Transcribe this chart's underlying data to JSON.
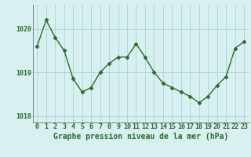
{
  "x": [
    0,
    1,
    2,
    3,
    4,
    5,
    6,
    7,
    8,
    9,
    10,
    11,
    12,
    13,
    14,
    15,
    16,
    17,
    18,
    19,
    20,
    21,
    22,
    23
  ],
  "y": [
    1019.6,
    1020.2,
    1019.8,
    1019.5,
    1018.85,
    1018.55,
    1018.65,
    1019.0,
    1019.2,
    1019.35,
    1019.35,
    1019.65,
    1019.35,
    1019.0,
    1018.75,
    1018.65,
    1018.55,
    1018.45,
    1018.3,
    1018.45,
    1018.7,
    1018.9,
    1019.55,
    1019.7
  ],
  "line_color": "#2d6a2d",
  "marker": "D",
  "marker_size": 2.5,
  "background_color": "#d8f0f0",
  "grid_color": "#b0d8d8",
  "axis_color": "#2d6a2d",
  "spine_color": "#808080",
  "xlabel": "Graphe pression niveau de la mer (hPa)",
  "xlabel_fontsize": 7,
  "tick_fontsize": 6,
  "ylim": [
    1017.85,
    1020.55
  ],
  "yticks": [
    1018,
    1019,
    1020
  ],
  "xlim": [
    -0.5,
    23.5
  ],
  "linewidth": 1.0
}
